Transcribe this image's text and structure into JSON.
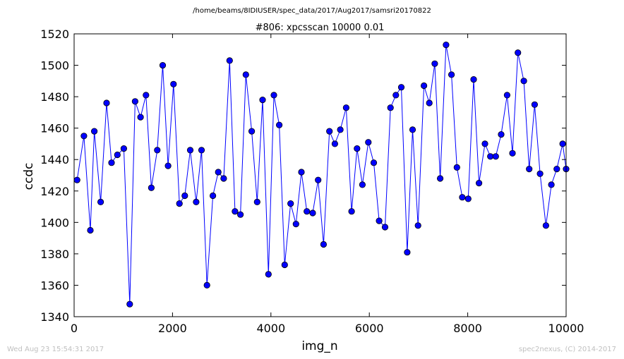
{
  "footer": {
    "timestamp": "Wed Aug 23 15:54:31 2017",
    "credit": "spec2nexus, (C) 2014-2017"
  },
  "chart_data": {
    "type": "line",
    "suptitle": "/home/beams/8IDIUSER/spec_data/2017/Aug2017/samsri20170822",
    "title": "#806: xpcsscan 10000 0.01",
    "xlabel": "img_n",
    "ylabel": "ccdc",
    "xlim": [
      0,
      10000
    ],
    "ylim": [
      1340,
      1520
    ],
    "xticks": [
      0,
      2000,
      4000,
      6000,
      8000,
      10000
    ],
    "yticks": [
      1340,
      1360,
      1380,
      1400,
      1420,
      1440,
      1460,
      1480,
      1500,
      1520
    ],
    "grid": false,
    "marker": "circle",
    "line_color": "#0000ff",
    "marker_color": "#0000ff",
    "series": [
      {
        "x": [
          60,
          200,
          330,
          410,
          540,
          660,
          760,
          880,
          1010,
          1130,
          1240,
          1350,
          1460,
          1570,
          1690,
          1800,
          1910,
          2020,
          2140,
          2250,
          2360,
          2480,
          2590,
          2700,
          2820,
          2930,
          3040,
          3160,
          3270,
          3380,
          3490,
          3610,
          3720,
          3830,
          3950,
          4060,
          4170,
          4280,
          4400,
          4510,
          4620,
          4730,
          4850,
          4960,
          5070,
          5190,
          5300,
          5410,
          5530,
          5640,
          5750,
          5860,
          5980,
          6090,
          6200,
          6320,
          6430,
          6540,
          6650,
          6770,
          6880,
          6990,
          7110,
          7220,
          7330,
          7440,
          7560,
          7670,
          7780,
          7890,
          8010,
          8120,
          8230,
          8350,
          8460,
          8570,
          8680,
          8800,
          8910,
          9020,
          9140,
          9250,
          9360,
          9470,
          9590,
          9700,
          9810,
          9930,
          10000
        ],
        "y": [
          1427,
          1455,
          1395,
          1458,
          1413,
          1476,
          1438,
          1443,
          1447,
          1348,
          1477,
          1467,
          1481,
          1422,
          1446,
          1500,
          1436,
          1488,
          1412,
          1417,
          1446,
          1413,
          1446,
          1360,
          1417,
          1432,
          1428,
          1503,
          1407,
          1405,
          1494,
          1458,
          1413,
          1478,
          1367,
          1481,
          1462,
          1373,
          1412,
          1399,
          1432,
          1407,
          1406,
          1427,
          1386,
          1458,
          1450,
          1459,
          1473,
          1407,
          1447,
          1424,
          1451,
          1438,
          1401,
          1397,
          1473,
          1481,
          1486,
          1381,
          1459,
          1398,
          1487,
          1476,
          1501,
          1428,
          1513,
          1494,
          1435,
          1416,
          1415,
          1491,
          1425,
          1450,
          1442,
          1442,
          1456,
          1481,
          1444,
          1508,
          1490,
          1434,
          1475,
          1431,
          1398,
          1424,
          1434,
          1450,
          1434
        ]
      }
    ]
  }
}
